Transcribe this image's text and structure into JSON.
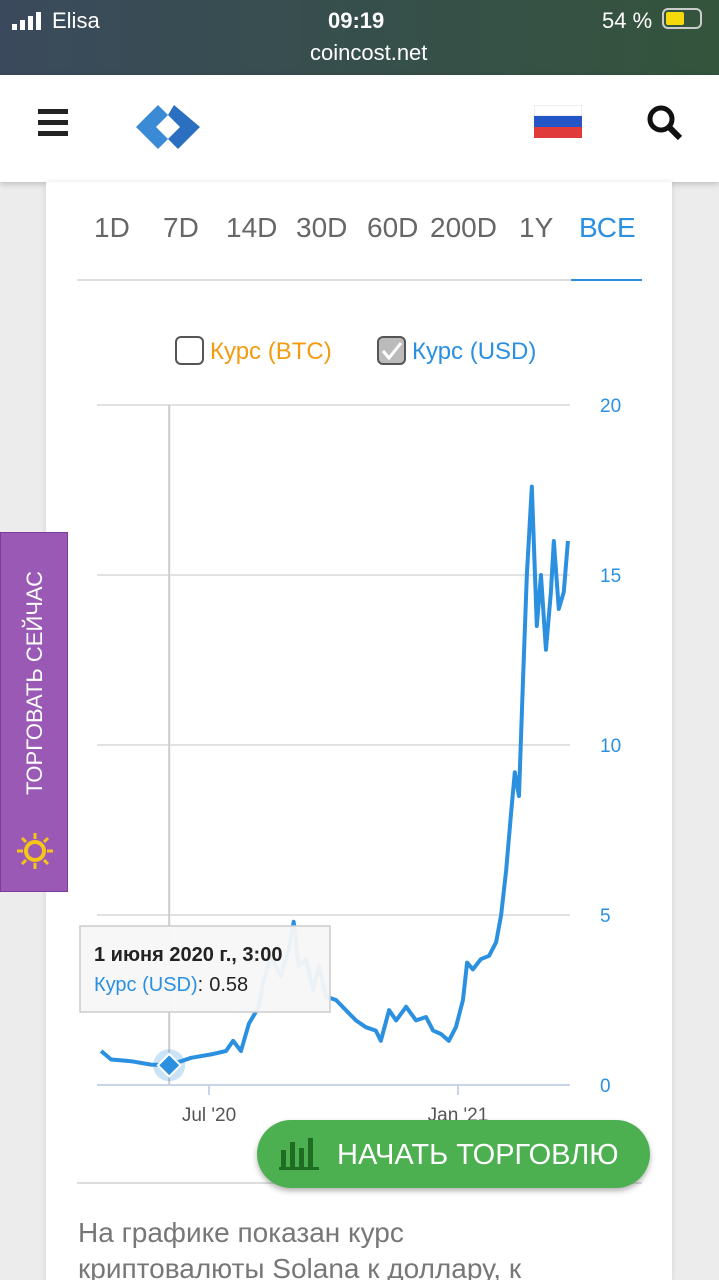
{
  "status_bar": {
    "carrier": "Elisa",
    "time": "09:19",
    "battery": "54 %",
    "url": "coincost.net"
  },
  "tabs": [
    "1D",
    "7D",
    "14D",
    "30D",
    "60D",
    "200D",
    "1Y",
    "ВСЕ"
  ],
  "active_tab": 7,
  "legend": [
    {
      "name": "Курс (BTC)",
      "color": "#f39c12",
      "checked": false
    },
    {
      "name": "Курс (USD)",
      "color": "#2b90e0",
      "checked": true
    }
  ],
  "side_button": "ТОРГОВАТЬ СЕЙЧАС",
  "trade_button": "НАЧАТЬ ТОРГОВЛЮ",
  "paragraph": "На графике показан курс криптовалюты Solana к доллару, к",
  "chart_data": {
    "type": "line",
    "x": [
      0.4,
      0.64,
      1.12,
      1.6,
      2.04,
      2.57,
      3.05,
      3.41,
      3.58,
      3.77,
      3.96,
      4.2,
      4.3,
      4.49,
      4.73,
      4.92,
      5.04,
      5.16,
      5.34,
      5.51,
      5.65,
      5.82,
      6.06,
      6.3,
      6.54,
      6.78,
      7.02,
      7.14,
      7.34,
      7.51,
      7.75,
      7.99,
      8.23,
      8.4,
      8.59,
      8.78,
      8.95,
      9.12,
      9.22,
      9.36,
      9.55,
      9.75,
      9.92,
      10.04,
      10.16,
      10.28,
      10.37,
      10.47,
      10.57,
      10.66,
      10.78,
      10.9,
      11.0,
      11.12,
      11.24,
      11.31,
      11.43,
      11.55,
      11.65
    ],
    "series": [
      {
        "name": "Курс (USD)",
        "color": "#2b90e0",
        "values": [
          1.0,
          0.75,
          0.7,
          0.6,
          0.58,
          0.8,
          0.9,
          1.0,
          1.3,
          1.0,
          1.8,
          2.3,
          3.0,
          3.8,
          3.2,
          4.0,
          4.8,
          3.5,
          3.7,
          2.8,
          3.5,
          2.6,
          2.5,
          2.2,
          1.9,
          1.7,
          1.6,
          1.3,
          2.2,
          1.9,
          2.3,
          1.9,
          2.0,
          1.6,
          1.5,
          1.3,
          1.7,
          2.5,
          3.6,
          3.4,
          3.7,
          3.8,
          4.2,
          5.0,
          6.3,
          8.0,
          9.2,
          8.5,
          12.0,
          15.0,
          17.6,
          13.5,
          15.0,
          12.8,
          14.5,
          16.0,
          14.0,
          14.5,
          16.0
        ]
      }
    ],
    "xlim": [
      0.3,
      11.7
    ],
    "xticks": [
      {
        "value": 3,
        "label": "Jul '20"
      },
      {
        "value": 9,
        "label": "Jan '21"
      }
    ],
    "ylim": [
      0,
      20
    ],
    "yticks": [
      0,
      5,
      10,
      15,
      20
    ],
    "grid": true,
    "tooltip": {
      "title": "1 июня 2020 г., 3:00",
      "separator": ":",
      "point": 4
    }
  }
}
